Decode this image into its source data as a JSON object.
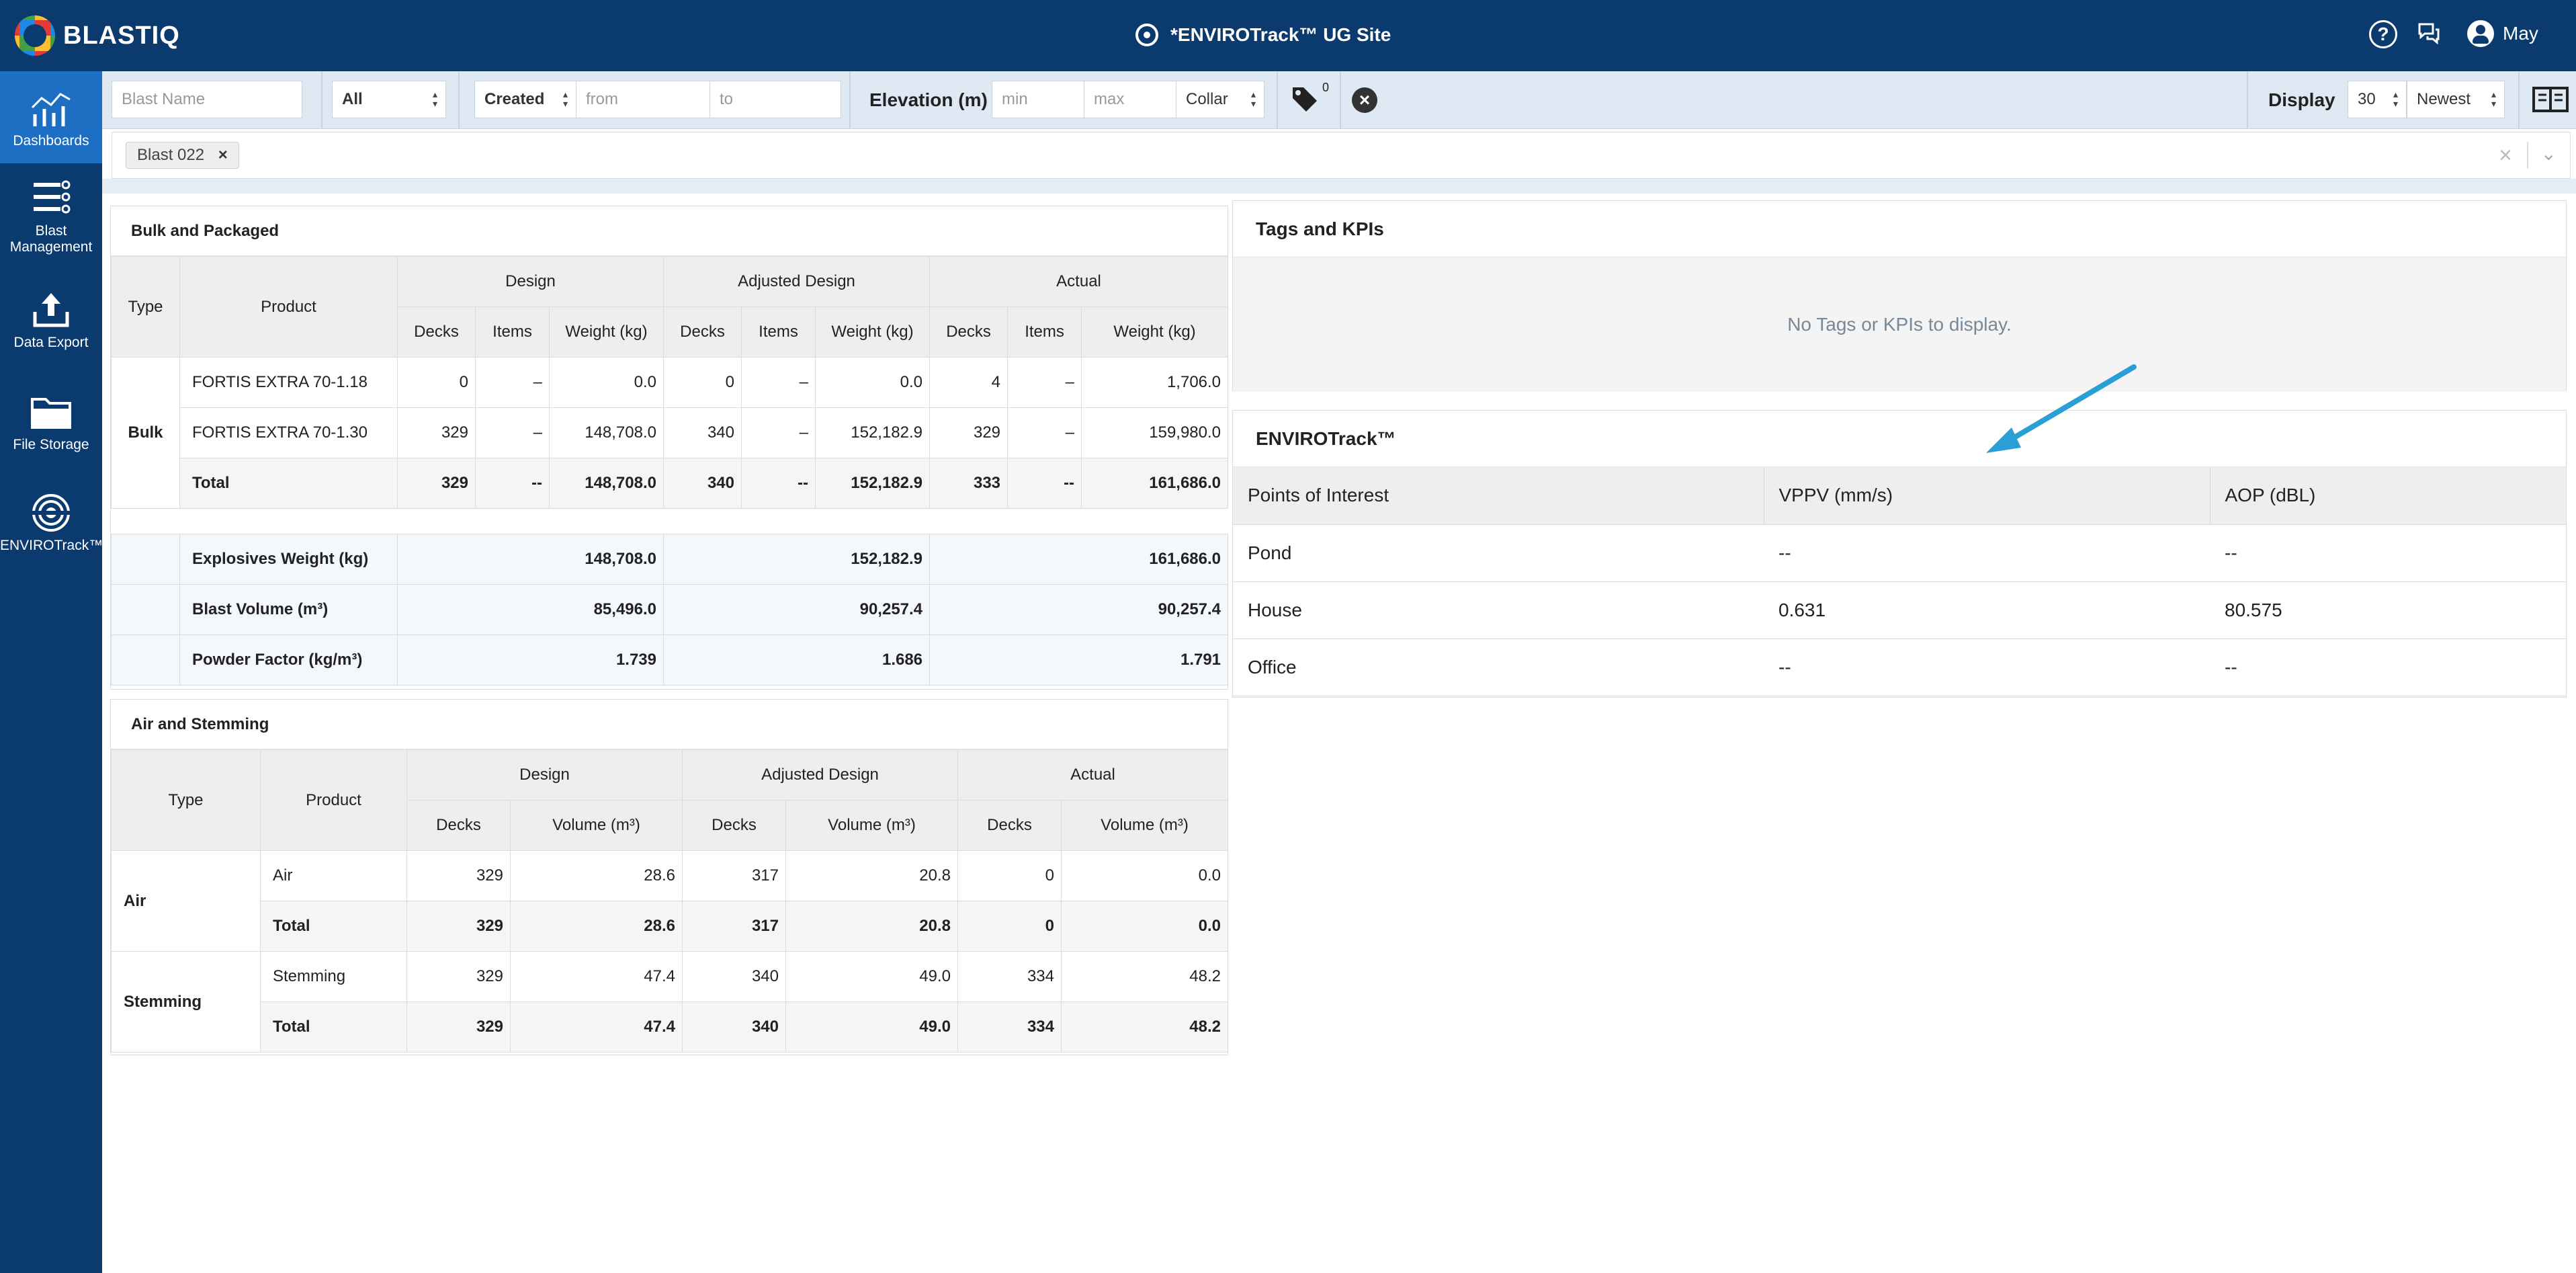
{
  "app": {
    "logo_text": "BLASTIQ",
    "site_title": "*ENVIROTrack™ UG Site",
    "user_name": "May",
    "help_glyph": "?"
  },
  "sidebar": {
    "items": [
      {
        "label": "Dashboards",
        "icon": "dashboards-icon"
      },
      {
        "label": "Blast Management",
        "icon": "blast-management-icon"
      },
      {
        "label": "Data Export",
        "icon": "data-export-icon"
      },
      {
        "label": "File Storage",
        "icon": "file-storage-icon"
      },
      {
        "label": "ENVIROTrack™",
        "icon": "envirotrack-icon"
      }
    ]
  },
  "filters": {
    "blast_name_placeholder": "Blast Name",
    "status_value": "All",
    "date_field_value": "Created",
    "from_placeholder": "from",
    "to_placeholder": "to",
    "elevation_label": "Elevation (m)",
    "min_placeholder": "min",
    "max_placeholder": "max",
    "elevation_ref_value": "Collar",
    "tag_count": "0",
    "display_label": "Display",
    "display_count_value": "30",
    "sort_value": "Newest"
  },
  "selected_chips": [
    {
      "label": "Blast 022",
      "remove": "×"
    }
  ],
  "chiprow": {
    "clear": "×",
    "chevron": "⌄"
  },
  "bulk_packaged": {
    "title": "Bulk and Packaged",
    "headers": {
      "type": "Type",
      "product": "Product",
      "design": "Design",
      "adjusted": "Adjusted Design",
      "actual": "Actual",
      "decks": "Decks",
      "items": "Items",
      "weight": "Weight (kg)"
    },
    "group_label": "Bulk",
    "rows": [
      {
        "product": "FORTIS EXTRA 70-1.18",
        "d_decks": "0",
        "d_items": "–",
        "d_weight": "0.0",
        "a_decks": "0",
        "a_items": "–",
        "a_weight": "0.0",
        "x_decks": "4",
        "x_items": "–",
        "x_weight": "1,706.0"
      },
      {
        "product": "FORTIS EXTRA 70-1.30",
        "d_decks": "329",
        "d_items": "–",
        "d_weight": "148,708.0",
        "a_decks": "340",
        "a_items": "–",
        "a_weight": "152,182.9",
        "x_decks": "329",
        "x_items": "–",
        "x_weight": "159,980.0"
      }
    ],
    "total": {
      "product": "Total",
      "d_decks": "329",
      "d_items": "--",
      "d_weight": "148,708.0",
      "a_decks": "340",
      "a_items": "--",
      "a_weight": "152,182.9",
      "x_decks": "333",
      "x_items": "--",
      "x_weight": "161,686.0"
    },
    "summary": [
      {
        "label": "Explosives Weight (kg)",
        "design": "148,708.0",
        "adjusted": "152,182.9",
        "actual": "161,686.0"
      },
      {
        "label": "Blast Volume (m³)",
        "design": "85,496.0",
        "adjusted": "90,257.4",
        "actual": "90,257.4"
      },
      {
        "label": "Powder Factor (kg/m³)",
        "design": "1.739",
        "adjusted": "1.686",
        "actual": "1.791"
      }
    ]
  },
  "air_stemming": {
    "title": "Air and Stemming",
    "headers": {
      "type": "Type",
      "product": "Product",
      "design": "Design",
      "adjusted": "Adjusted Design",
      "actual": "Actual",
      "decks": "Decks",
      "volume": "Volume (m³)"
    },
    "groups": [
      {
        "type": "Air",
        "rows": [
          {
            "product": "Air",
            "d_decks": "329",
            "d_vol": "28.6",
            "a_decks": "317",
            "a_vol": "20.8",
            "x_decks": "0",
            "x_vol": "0.0"
          },
          {
            "product": "Total",
            "d_decks": "329",
            "d_vol": "28.6",
            "a_decks": "317",
            "a_vol": "20.8",
            "x_decks": "0",
            "x_vol": "0.0"
          }
        ]
      },
      {
        "type": "Stemming",
        "rows": [
          {
            "product": "Stemming",
            "d_decks": "329",
            "d_vol": "47.4",
            "a_decks": "340",
            "a_vol": "49.0",
            "x_decks": "334",
            "x_vol": "48.2"
          },
          {
            "product": "Total",
            "d_decks": "329",
            "d_vol": "47.4",
            "a_decks": "340",
            "a_vol": "49.0",
            "x_decks": "334",
            "x_vol": "48.2"
          }
        ]
      }
    ]
  },
  "tags_kpis": {
    "title": "Tags and KPIs",
    "empty_message": "No Tags or KPIs to display."
  },
  "envirotrack": {
    "title": "ENVIROTrack™",
    "headers": {
      "poi": "Points of Interest",
      "vppv": "VPPV (mm/s)",
      "aop": "AOP (dBL)"
    },
    "rows": [
      {
        "poi": "Pond",
        "vppv": "--",
        "aop": "--"
      },
      {
        "poi": "House",
        "vppv": "0.631",
        "aop": "80.575"
      },
      {
        "poi": "Office",
        "vppv": "--",
        "aop": "--"
      }
    ]
  },
  "colors": {
    "header_bg": "#0b3a6e",
    "sidebar_active": "#1d6fc3",
    "filterbar_bg": "#dfe9f4",
    "annotation_arrow": "#2a9fd6"
  }
}
